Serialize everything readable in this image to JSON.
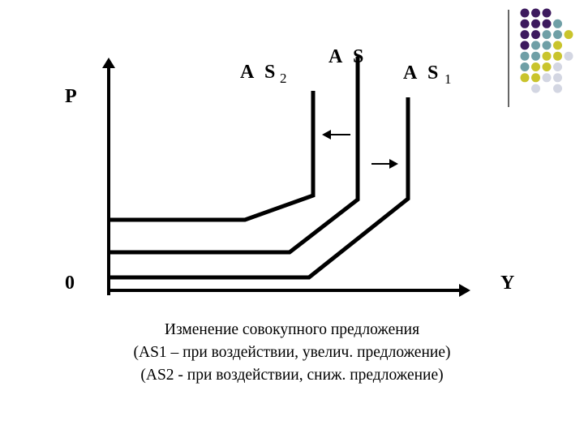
{
  "diagram": {
    "axis_labels": {
      "y": "P",
      "x": "Y",
      "origin": "0"
    },
    "curves": [
      {
        "label": "A S",
        "sub": "2"
      },
      {
        "label": "A S",
        "sub": ""
      },
      {
        "label": "A S",
        "sub": "1"
      }
    ],
    "arrows": [
      "left",
      "right"
    ]
  },
  "caption": [
    "Изменение совокупного предложения",
    "(AS1 – при воздействии, увелич. предложение)",
    "(AS2 - при воздействии, сниж. предложение)"
  ],
  "decoration": {
    "colors": {
      "purple": "#3d1a5e",
      "teal": "#6f9fa6",
      "yellow": "#c9c42c",
      "light": "#d3d6e2"
    },
    "grid": [
      "PPP",
      "PPPT",
      "PPTTY",
      "PTTY",
      "TTYYL",
      "TYYL",
      "YYLL",
      ".L.L"
    ]
  }
}
